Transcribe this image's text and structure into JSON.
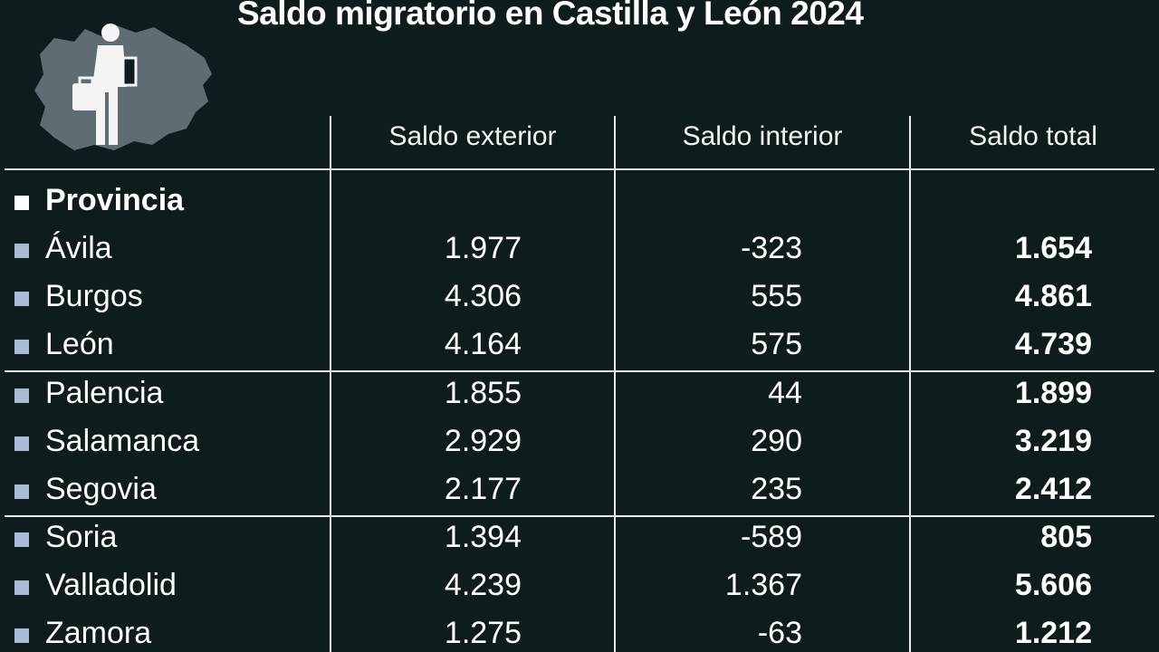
{
  "title": "Saldo migratorio en Castilla y León 2024",
  "icon": "person-with-suitcase-over-map-icon",
  "colors": {
    "background": "#0f1c1e",
    "map_silhouette": "#5f6d73",
    "bullet": "#a9bbd6",
    "text": "#ffffff"
  },
  "chart_data": {
    "type": "table",
    "title": "Saldo migratorio en Castilla y León 2024",
    "row_header": "Provincia",
    "columns": [
      "Saldo exterior",
      "Saldo interior",
      "Saldo total"
    ],
    "rows": [
      {
        "name": "Ávila",
        "values": [
          "1.977",
          "-323",
          "1.654"
        ]
      },
      {
        "name": "Burgos",
        "values": [
          "4.306",
          "555",
          "4.861"
        ]
      },
      {
        "name": "León",
        "values": [
          "4.164",
          "575",
          "4.739"
        ]
      },
      {
        "name": "Palencia",
        "values": [
          "1.855",
          "44",
          "1.899"
        ]
      },
      {
        "name": "Salamanca",
        "values": [
          "2.929",
          "290",
          "3.219"
        ]
      },
      {
        "name": "Segovia",
        "values": [
          "2.177",
          "235",
          "2.412"
        ]
      },
      {
        "name": "Soria",
        "values": [
          "1.394",
          "-589",
          "805"
        ]
      },
      {
        "name": "Valladolid",
        "values": [
          "4.239",
          "1.367",
          "5.606"
        ]
      },
      {
        "name": "Zamora",
        "values": [
          "1.275",
          "-63",
          "1.212"
        ]
      }
    ]
  }
}
